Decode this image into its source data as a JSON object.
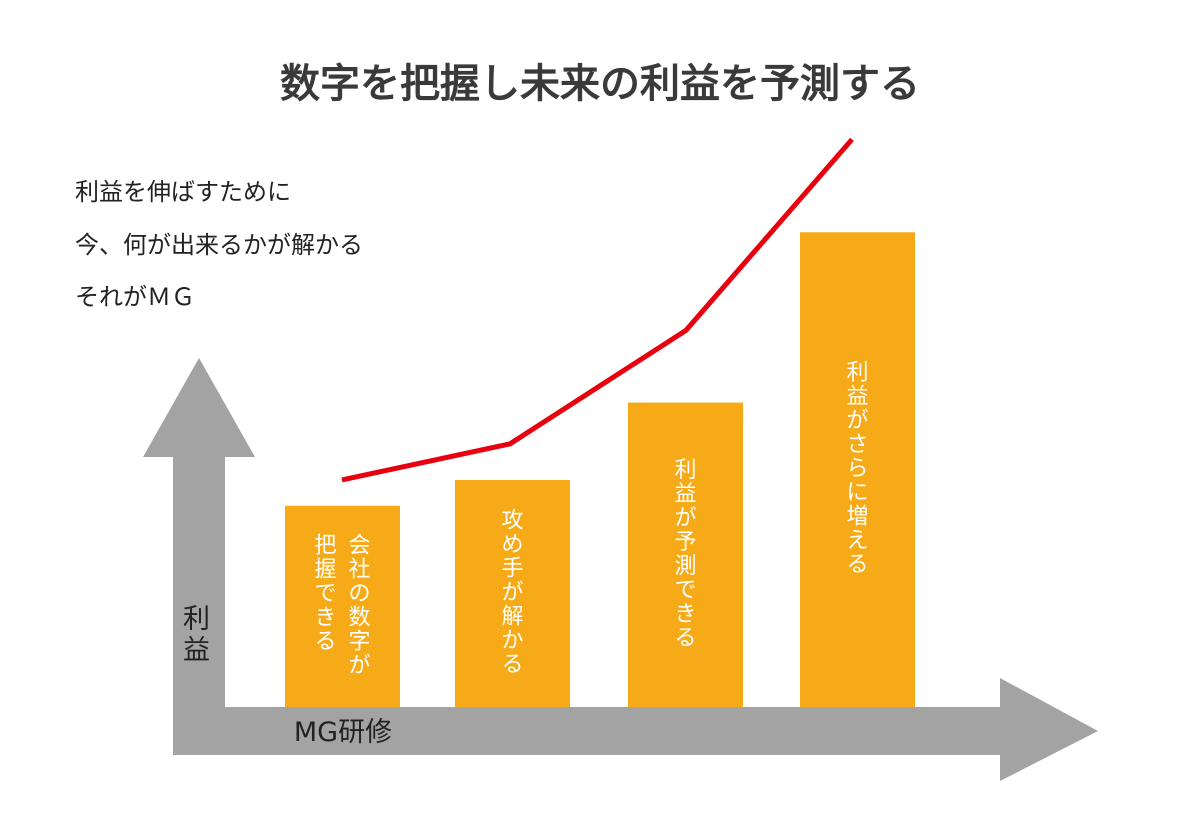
{
  "title": "数字を把握し未来の利益を予測する",
  "notes": [
    "利益を伸ばすために",
    "今、何が出来るかが解かる",
    "それがＭＧ"
  ],
  "axes": {
    "y_label": "利益",
    "x_label": "MG研修"
  },
  "colors": {
    "bar": "#F7AA18",
    "line": "#E8000E",
    "axis": "#A3A3A3",
    "title": "#3a3a3a"
  },
  "bars": [
    {
      "columns": [
        "会社の数字が",
        "把握できる"
      ]
    },
    {
      "columns": [
        "攻め手が解かる"
      ]
    },
    {
      "columns": [
        "利益が予測できる"
      ]
    },
    {
      "columns": [
        "利益がさらに増える"
      ]
    }
  ],
  "bar_levels": [
    0.39,
    0.44,
    0.59,
    0.92
  ],
  "trend_levels": [
    0.44,
    0.51,
    0.73,
    1.1
  ]
}
